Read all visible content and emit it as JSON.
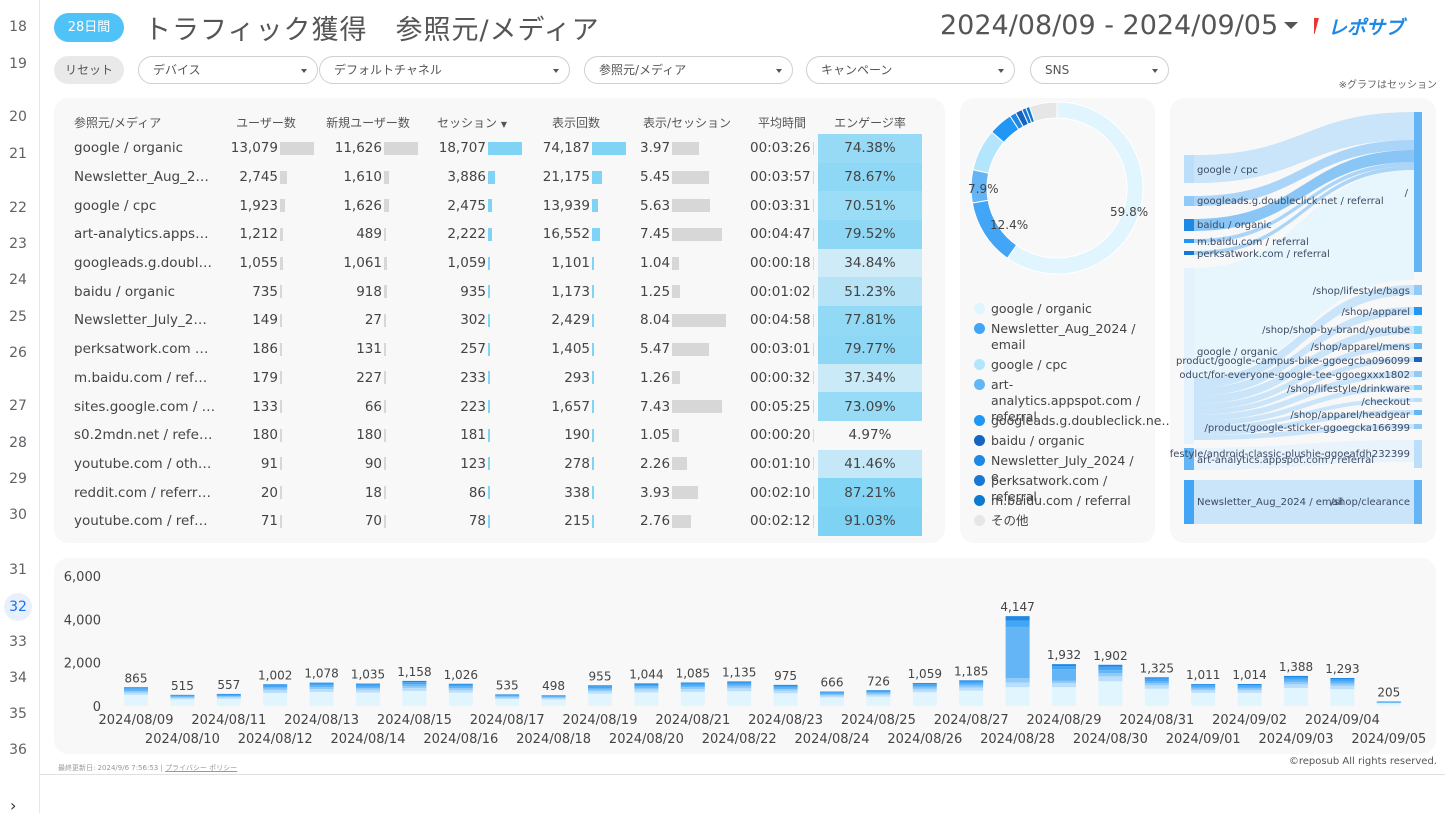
{
  "gutter": {
    "lines": [
      "18",
      "19",
      "20",
      "21",
      "22",
      "23",
      "24",
      "25",
      "26",
      "27",
      "28",
      "29",
      "30",
      "31",
      "32",
      "33",
      "34",
      "35",
      "36"
    ],
    "active": "32"
  },
  "header": {
    "period_badge": "28日間",
    "title": "トラフィック獲得　参照元/メディア",
    "date_range": "2024/08/09 - 2024/09/05",
    "logo_text": "レポサブ",
    "note": "※グラフはセッション"
  },
  "filters": {
    "reset_label": "リセット",
    "items": [
      "デバイス",
      "デフォルトチャネル",
      "参照元/メディア",
      "キャンペーン",
      "SNS"
    ]
  },
  "table": {
    "headers": [
      "参照元/メディア",
      "ユーザー数",
      "新規ユーザー数",
      "セッション",
      "表示回数",
      "表示/セッション",
      "平均時間",
      "エンゲージ率"
    ],
    "rows": [
      {
        "src": "google / organic",
        "users": "13,079",
        "newusers": "11,626",
        "sessions": "18,707",
        "views": "74,187",
        "vps": "3.97",
        "avg": "00:03:26",
        "eng": "74.38%"
      },
      {
        "src": "Newsletter_Aug_2…",
        "users": "2,745",
        "newusers": "1,610",
        "sessions": "3,886",
        "views": "21,175",
        "vps": "5.45",
        "avg": "00:03:57",
        "eng": "78.67%"
      },
      {
        "src": "google / cpc",
        "users": "1,923",
        "newusers": "1,626",
        "sessions": "2,475",
        "views": "13,939",
        "vps": "5.63",
        "avg": "00:03:31",
        "eng": "70.51%"
      },
      {
        "src": "art-analytics.apps…",
        "users": "1,212",
        "newusers": "489",
        "sessions": "2,222",
        "views": "16,552",
        "vps": "7.45",
        "avg": "00:04:47",
        "eng": "79.52%"
      },
      {
        "src": "googleads.g.doubl…",
        "users": "1,055",
        "newusers": "1,061",
        "sessions": "1,059",
        "views": "1,101",
        "vps": "1.04",
        "avg": "00:00:18",
        "eng": "34.84%"
      },
      {
        "src": "baidu / organic",
        "users": "735",
        "newusers": "918",
        "sessions": "935",
        "views": "1,173",
        "vps": "1.25",
        "avg": "00:01:02",
        "eng": "51.23%"
      },
      {
        "src": "Newsletter_July_2…",
        "users": "149",
        "newusers": "27",
        "sessions": "302",
        "views": "2,429",
        "vps": "8.04",
        "avg": "00:04:58",
        "eng": "77.81%"
      },
      {
        "src": "perksatwork.com …",
        "users": "186",
        "newusers": "131",
        "sessions": "257",
        "views": "1,405",
        "vps": "5.47",
        "avg": "00:03:01",
        "eng": "79.77%"
      },
      {
        "src": "m.baidu.com / ref…",
        "users": "179",
        "newusers": "227",
        "sessions": "233",
        "views": "293",
        "vps": "1.26",
        "avg": "00:00:32",
        "eng": "37.34%"
      },
      {
        "src": "sites.google.com / …",
        "users": "133",
        "newusers": "66",
        "sessions": "223",
        "views": "1,657",
        "vps": "7.43",
        "avg": "00:05:25",
        "eng": "73.09%"
      },
      {
        "src": "s0.2mdn.net / refe…",
        "users": "180",
        "newusers": "180",
        "sessions": "181",
        "views": "190",
        "vps": "1.05",
        "avg": "00:00:20",
        "eng": "4.97%"
      },
      {
        "src": "youtube.com / oth…",
        "users": "91",
        "newusers": "90",
        "sessions": "123",
        "views": "278",
        "vps": "2.26",
        "avg": "00:01:10",
        "eng": "41.46%"
      },
      {
        "src": "reddit.com / referr…",
        "users": "20",
        "newusers": "18",
        "sessions": "86",
        "views": "338",
        "vps": "3.93",
        "avg": "00:02:10",
        "eng": "87.21%"
      },
      {
        "src": "youtube.com / ref…",
        "users": "71",
        "newusers": "70",
        "sessions": "78",
        "views": "215",
        "vps": "2.76",
        "avg": "00:02:12",
        "eng": "91.03%"
      }
    ]
  },
  "donut": {
    "labels_shown": [
      "59.8%",
      "12.4%",
      "7.9%"
    ],
    "legend": [
      {
        "label": "google / organic",
        "color": "#e1f5fe"
      },
      {
        "label": "Newsletter_Aug_2024 / email",
        "color": "#42a5f5"
      },
      {
        "label": "google / cpc",
        "color": "#b3e5fc"
      },
      {
        "label": "art-analytics.appspot.com / referral",
        "color": "#64b5f6"
      },
      {
        "label": "googleads.g.doubleclick.ne…",
        "color": "#2196f3"
      },
      {
        "label": "baidu / organic",
        "color": "#1565c0"
      },
      {
        "label": "Newsletter_July_2024 / e…",
        "color": "#1e88e5"
      },
      {
        "label": "perksatwork.com / referral",
        "color": "#1976d2"
      },
      {
        "label": "m.baidu.com / referral",
        "color": "#0d79d0"
      },
      {
        "label": "その他",
        "color": "#e6e6e6"
      }
    ]
  },
  "sankey": {
    "left_labels": [
      "google / cpc",
      "googleads.g.doubleclick.net / referral",
      "baidu / organic",
      "m.baidu.com / referral",
      "perksatwork.com / referral",
      "google / organic",
      "art-analytics.appspot.com / referral",
      "Newsletter_Aug_2024 / email"
    ],
    "right_labels": [
      "/",
      "/shop/lifestyle/bags",
      "/shop/apparel",
      "/shop/shop-by-brand/youtube",
      "/shop/apparel/mens",
      "product/google-campus-bike-ggoegcba096099",
      "oduct/for-everyone-google-tee-ggoegxxx1802",
      "/shop/lifestyle/drinkware",
      "/checkout",
      "/shop/apparel/headgear",
      "/product/google-sticker-ggoegcka166399",
      "festyle/android-classic-plushie-ggoeafdh232399",
      "/shop/clearance"
    ]
  },
  "chart_data": {
    "type": "bar",
    "stacked": true,
    "categories": [
      "2024/08/09",
      "2024/08/10",
      "2024/08/11",
      "2024/08/12",
      "2024/08/13",
      "2024/08/14",
      "2024/08/15",
      "2024/08/16",
      "2024/08/17",
      "2024/08/18",
      "2024/08/19",
      "2024/08/20",
      "2024/08/21",
      "2024/08/22",
      "2024/08/23",
      "2024/08/24",
      "2024/08/25",
      "2024/08/26",
      "2024/08/27",
      "2024/08/28",
      "2024/08/29",
      "2024/08/30",
      "2024/08/31",
      "2024/09/01",
      "2024/09/02",
      "2024/09/03",
      "2024/09/04",
      "2024/09/05"
    ],
    "values": [
      865,
      515,
      557,
      1002,
      1078,
      1035,
      1158,
      1026,
      535,
      498,
      955,
      1044,
      1085,
      1135,
      975,
      666,
      726,
      1059,
      1185,
      4147,
      1932,
      1902,
      1325,
      1011,
      1014,
      1388,
      1293,
      205
    ],
    "ylim": [
      0,
      6000
    ],
    "yticks": [
      "0",
      "2,000",
      "4,000",
      "6,000"
    ],
    "title": "",
    "xlabel": "",
    "ylabel": ""
  },
  "footer": {
    "updated": "最終更新日: 2024/9/6 7:56:53",
    "separator": "|",
    "privacy": "プライバシー ポリシー",
    "copyright": "©reposub All rights reserved."
  }
}
